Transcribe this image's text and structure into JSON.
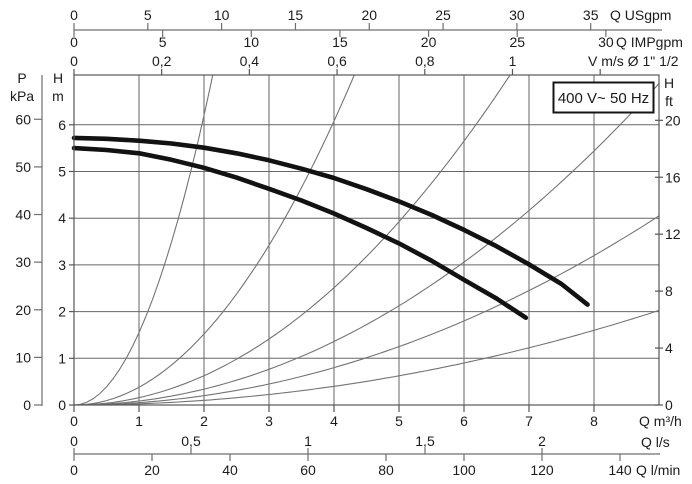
{
  "colors": {
    "background": "#ffffff",
    "text": "#1c1c1c",
    "grid": "#666666",
    "plot_border": "#565656",
    "axis_line": "#6f6f6f",
    "pump_curve": "#121212",
    "system_curve": "#747474",
    "box_border": "#151515"
  },
  "chart_data": {
    "type": "line",
    "power_box": "400 V~ 50 Hz",
    "xlim_m3h": [
      0,
      9
    ],
    "ylim_m": [
      0,
      7.07
    ],
    "grid": {
      "x_step_m3h": 1,
      "y_step_m": 1,
      "grid_on": true
    },
    "x_axes_top": [
      {
        "unit_label": "Q USgpm",
        "tick_labels": [
          "0",
          "5",
          "10",
          "15",
          "20",
          "25",
          "30",
          "35"
        ],
        "tick_values_m3h": [
          0,
          1.1356,
          2.2712,
          3.4068,
          4.5424,
          5.678,
          6.8137,
          7.9493
        ]
      },
      {
        "unit_label": "Q IMPgpm",
        "tick_labels": [
          "0",
          "5",
          "10",
          "15",
          "20",
          "25",
          "30"
        ],
        "tick_values_m3h": [
          0,
          1.3638,
          2.7276,
          4.0914,
          5.4552,
          6.819,
          8.1828
        ]
      },
      {
        "unit_label": "V m/s Ø 1\" 1/2",
        "tick_labels": [
          "0",
          "0,2",
          "0,4",
          "0,6",
          "0,8",
          "1",
          ""
        ],
        "tick_values_m3h": [
          0,
          1.349,
          2.698,
          4.047,
          5.397,
          6.746,
          8.095
        ]
      }
    ],
    "x_axes_bottom": [
      {
        "unit_label": "Q m³/h",
        "tick_labels": [
          "0",
          "1",
          "2",
          "3",
          "4",
          "5",
          "6",
          "7",
          "8"
        ],
        "tick_values_m3h": [
          0,
          1,
          2,
          3,
          4,
          5,
          6,
          7,
          8
        ]
      },
      {
        "unit_label": "Q l/s",
        "tick_labels": [
          "0",
          "0,5",
          "1",
          "1,5",
          "2"
        ],
        "tick_values_m3h": [
          0,
          1.8,
          3.6,
          5.4,
          7.2
        ]
      },
      {
        "unit_label": "Q l/min",
        "tick_labels": [
          "0",
          "20",
          "40",
          "60",
          "80",
          "100",
          "120",
          "140"
        ],
        "tick_values_m3h": [
          0,
          1.2,
          2.4,
          3.6,
          4.8,
          6,
          7.2,
          8.4
        ]
      }
    ],
    "y_axes": [
      {
        "header_top": "P",
        "header_bottom": "kPa",
        "tick_labels": [
          "0",
          "10",
          "20",
          "30",
          "40",
          "50",
          "60"
        ],
        "tick_values_m": [
          0,
          1.0197,
          2.0394,
          3.0591,
          4.0788,
          5.0985,
          6.1182
        ]
      },
      {
        "header_top": "H",
        "header_bottom": "m",
        "tick_labels": [
          "0",
          "1",
          "2",
          "3",
          "4",
          "5",
          "6"
        ],
        "tick_values_m": [
          0,
          1,
          2,
          3,
          4,
          5,
          6
        ]
      },
      {
        "header_top": "H",
        "header_bottom": "ft",
        "tick_labels": [
          "0",
          "4",
          "8",
          "12",
          "16",
          "20"
        ],
        "tick_values_m": [
          0,
          1.2192,
          2.4384,
          3.6576,
          4.8768,
          6.096
        ]
      }
    ],
    "pump_curves": [
      {
        "name": "upper-speed-curve",
        "points_q_h": [
          [
            0,
            5.72
          ],
          [
            0.5,
            5.7
          ],
          [
            1,
            5.66
          ],
          [
            1.5,
            5.6
          ],
          [
            2,
            5.51
          ],
          [
            2.5,
            5.39
          ],
          [
            3,
            5.24
          ],
          [
            3.5,
            5.06
          ],
          [
            4,
            4.86
          ],
          [
            4.5,
            4.62
          ],
          [
            5,
            4.36
          ],
          [
            5.5,
            4.07
          ],
          [
            6,
            3.75
          ],
          [
            6.5,
            3.4
          ],
          [
            7,
            3.01
          ],
          [
            7.5,
            2.59
          ],
          [
            7.9,
            2.15
          ]
        ]
      },
      {
        "name": "lower-speed-curve",
        "points_q_h": [
          [
            0,
            5.5
          ],
          [
            0.5,
            5.46
          ],
          [
            1,
            5.39
          ],
          [
            1.5,
            5.25
          ],
          [
            2,
            5.08
          ],
          [
            2.5,
            4.87
          ],
          [
            3,
            4.63
          ],
          [
            3.5,
            4.38
          ],
          [
            4,
            4.1
          ],
          [
            4.5,
            3.79
          ],
          [
            5,
            3.46
          ],
          [
            5.5,
            3.09
          ],
          [
            6,
            2.68
          ],
          [
            6.5,
            2.28
          ],
          [
            6.95,
            1.87
          ]
        ]
      }
    ],
    "system_curves": [
      {
        "k": 1.55
      },
      {
        "k": 0.38
      },
      {
        "k": 0.157
      },
      {
        "k": 0.085
      },
      {
        "k": 0.05
      },
      {
        "k": 0.025
      }
    ]
  }
}
